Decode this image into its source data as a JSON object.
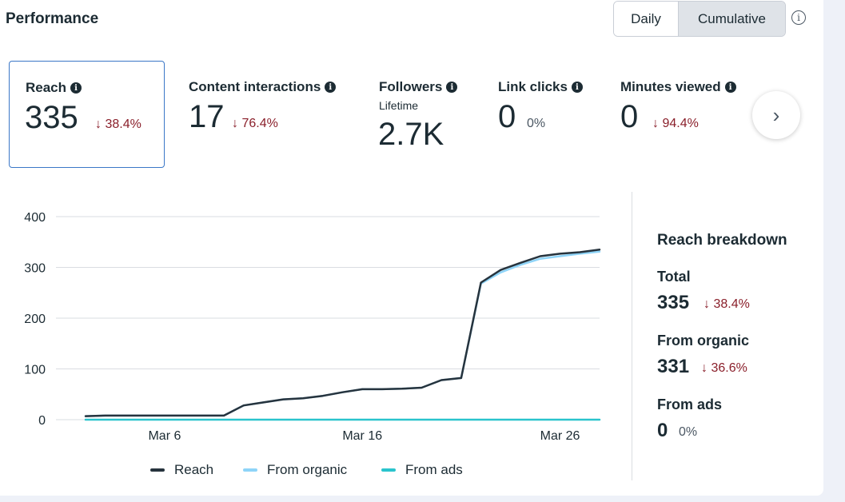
{
  "header": {
    "title": "Performance"
  },
  "toggle": {
    "daily": "Daily",
    "cumulative": "Cumulative",
    "selected": "Cumulative"
  },
  "metrics": [
    {
      "label": "Reach",
      "value": "335",
      "change": "38.4%",
      "direction": "down",
      "selected": true
    },
    {
      "label": "Content interactions",
      "value": "17",
      "change": "76.4%",
      "direction": "down"
    },
    {
      "label": "Followers",
      "sublabel": "Lifetime",
      "value": "2.7K"
    },
    {
      "label": "Link clicks",
      "value": "0",
      "change": "0%",
      "direction": "none"
    },
    {
      "label": "Minutes viewed",
      "value": "0",
      "change": "94.4%",
      "direction": "down"
    }
  ],
  "icons": {
    "info": "info-icon",
    "next": "chevron-right-icon",
    "down": "arrow-down-icon"
  },
  "colors": {
    "reach": "#26333d",
    "organic": "#8ed4f8",
    "ads": "#2ac4cd",
    "down": "#8a1f2a",
    "selected_border": "#3b77c7"
  },
  "chart_data": {
    "type": "line",
    "x_tick_labels": [
      "Mar 6",
      "Mar 16",
      "Mar 26"
    ],
    "y_ticks": [
      0,
      100,
      200,
      300,
      400
    ],
    "ylim": [
      0,
      400
    ],
    "grid": true,
    "legend_position": "bottom",
    "series": [
      {
        "name": "Reach",
        "values": [
          7,
          8,
          8,
          8,
          8,
          8,
          8,
          8,
          28,
          34,
          40,
          42,
          47,
          54,
          60,
          60,
          61,
          63,
          78,
          82,
          270,
          295,
          309,
          322,
          327,
          330,
          335
        ]
      },
      {
        "name": "From organic",
        "values": [
          7,
          8,
          8,
          8,
          8,
          8,
          8,
          8,
          28,
          34,
          40,
          42,
          47,
          54,
          60,
          60,
          61,
          63,
          78,
          82,
          268,
          290,
          305,
          317,
          322,
          327,
          331
        ]
      },
      {
        "name": "From ads",
        "values": [
          0,
          0,
          0,
          0,
          0,
          0,
          0,
          0,
          0,
          0,
          0,
          0,
          0,
          0,
          0,
          0,
          0,
          0,
          0,
          0,
          0,
          0,
          0,
          0,
          0,
          0,
          0
        ]
      }
    ]
  },
  "breakdown": {
    "title": "Reach breakdown",
    "items": [
      {
        "label": "Total",
        "value": "335",
        "change": "38.4%",
        "direction": "down"
      },
      {
        "label": "From organic",
        "value": "331",
        "change": "36.6%",
        "direction": "down"
      },
      {
        "label": "From ads",
        "value": "0",
        "change": "0%",
        "direction": "none"
      }
    ]
  }
}
